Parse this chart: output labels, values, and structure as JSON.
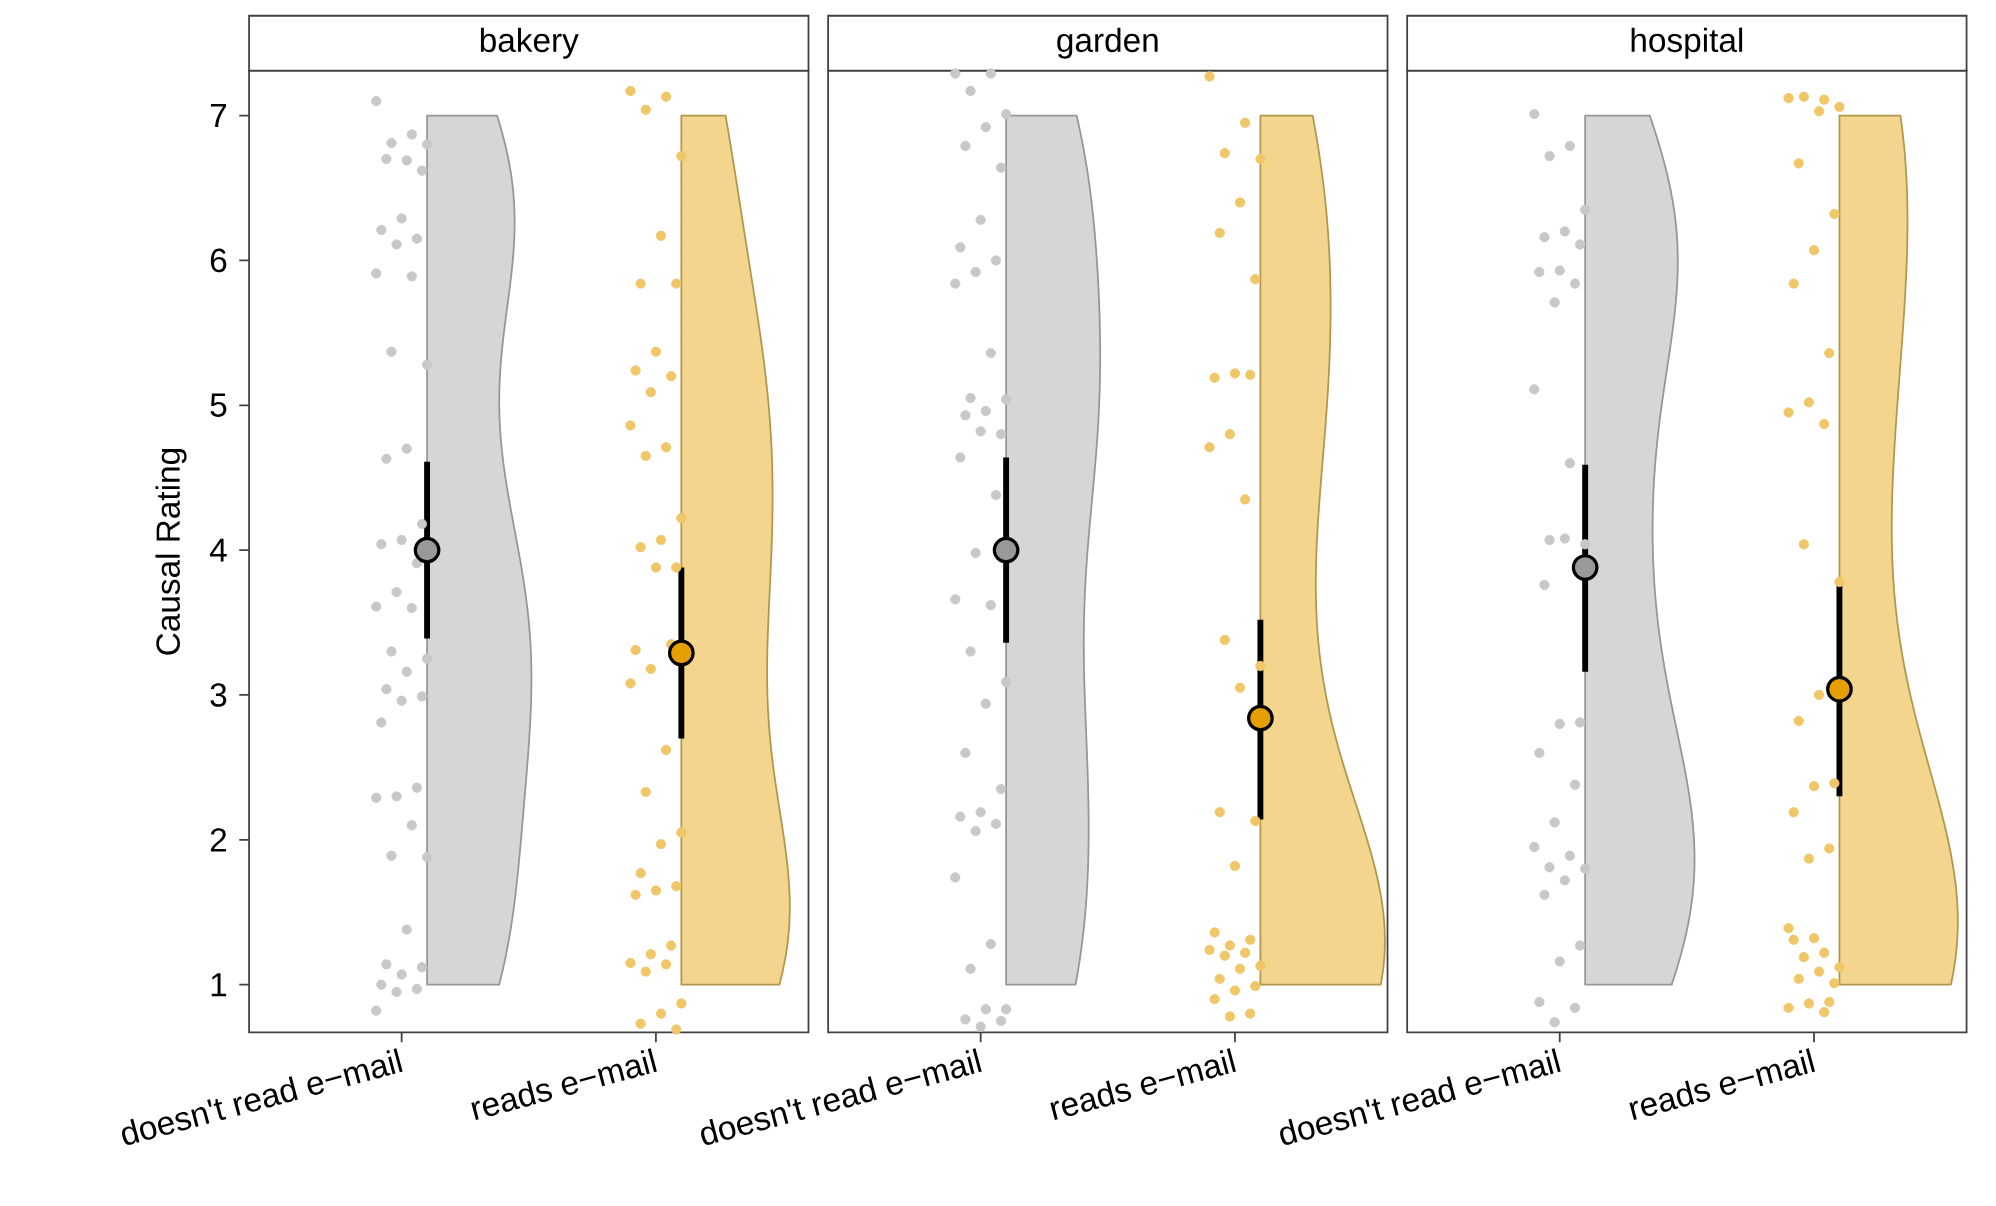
{
  "chart_data": [
    {
      "type": "scatter",
      "title": "bakery",
      "ylabel": "Causal Rating",
      "categories": [
        "doesn't read e−mail",
        "reads e−mail"
      ],
      "ylim": [
        0.67,
        7.31
      ],
      "yticks": [
        1,
        2,
        3,
        4,
        5,
        6,
        7
      ],
      "marker": "circle",
      "series": [
        {
          "color": "#c8c8c8",
          "x": [
            "doesn't read e−mail",
            "doesn't read e−mail",
            "doesn't read e−mail",
            "doesn't read e−mail",
            "doesn't read e−mail",
            "doesn't read e−mail",
            "doesn't read e−mail",
            "doesn't read e−mail",
            "doesn't read e−mail",
            "doesn't read e−mail",
            "doesn't read e−mail",
            "doesn't read e−mail",
            "doesn't read e−mail",
            "doesn't read e−mail",
            "doesn't read e−mail",
            "doesn't read e−mail",
            "doesn't read e−mail",
            "doesn't read e−mail",
            "doesn't read e−mail",
            "doesn't read e−mail",
            "doesn't read e−mail",
            "doesn't read e−mail",
            "doesn't read e−mail",
            "doesn't read e−mail",
            "doesn't read e−mail",
            "doesn't read e−mail",
            "doesn't read e−mail",
            "doesn't read e−mail",
            "doesn't read e−mail",
            "doesn't read e−mail",
            "doesn't read e−mail",
            "doesn't read e−mail",
            "doesn't read e−mail",
            "doesn't read e−mail",
            "doesn't read e−mail",
            "doesn't read e−mail",
            "doesn't read e−mail",
            "doesn't read e−mail",
            "doesn't read e−mail",
            "doesn't read e−mail",
            "doesn't read e−mail",
            "doesn't read e−mail",
            "doesn't read e−mail",
            "doesn't read e−mail",
            "doesn't read e−mail"
          ],
          "values": [
            7.1,
            6.87,
            6.81,
            6.8,
            6.69,
            6.7,
            6.62,
            6.29,
            6.21,
            6.15,
            6.11,
            5.91,
            5.89,
            5.37,
            5.28,
            4.7,
            4.63,
            4.18,
            4.07,
            4.04,
            3.91,
            3.71,
            3.61,
            3.6,
            3.3,
            3.25,
            3.16,
            3.04,
            2.99,
            2.96,
            2.81,
            2.36,
            2.3,
            2.29,
            2.1,
            1.89,
            1.88,
            1.38,
            1.14,
            1.12,
            1.07,
            1.0,
            0.97,
            0.95,
            0.82
          ]
        },
        {
          "color": "#f0c768",
          "x": [
            "reads e−mail",
            "reads e−mail",
            "reads e−mail",
            "reads e−mail",
            "reads e−mail",
            "reads e−mail",
            "reads e−mail",
            "reads e−mail",
            "reads e−mail",
            "reads e−mail",
            "reads e−mail",
            "reads e−mail",
            "reads e−mail",
            "reads e−mail",
            "reads e−mail",
            "reads e−mail",
            "reads e−mail",
            "reads e−mail",
            "reads e−mail",
            "reads e−mail",
            "reads e−mail",
            "reads e−mail",
            "reads e−mail",
            "reads e−mail",
            "reads e−mail",
            "reads e−mail",
            "reads e−mail",
            "reads e−mail",
            "reads e−mail",
            "reads e−mail",
            "reads e−mail",
            "reads e−mail",
            "reads e−mail",
            "reads e−mail",
            "reads e−mail",
            "reads e−mail",
            "reads e−mail",
            "reads e−mail",
            "reads e−mail",
            "reads e−mail"
          ],
          "values": [
            7.17,
            7.13,
            7.04,
            6.72,
            6.17,
            5.84,
            5.84,
            5.37,
            5.24,
            5.2,
            5.09,
            4.86,
            4.71,
            4.65,
            4.22,
            4.07,
            4.02,
            3.88,
            3.88,
            3.31,
            3.35,
            3.18,
            3.08,
            2.62,
            2.33,
            2.05,
            1.97,
            1.77,
            1.68,
            1.65,
            1.62,
            1.27,
            1.21,
            1.15,
            1.14,
            1.09,
            0.87,
            0.8,
            0.73,
            0.69
          ]
        },
        {
          "color": "#999999",
          "x": [
            "doesn't read e−mail"
          ],
          "values": [
            4.0
          ],
          "errors": [
            [
              3.39,
              4.61
            ]
          ]
        },
        {
          "color": "#e69f00",
          "x": [
            "reads e−mail"
          ],
          "values": [
            3.29
          ],
          "errors": [
            [
              2.7,
              3.88
            ]
          ]
        }
      ]
    },
    {
      "type": "scatter",
      "title": "garden",
      "categories": [
        "doesn't read e−mail",
        "reads e−mail"
      ],
      "ylim": [
        0.67,
        7.31
      ],
      "tick_labels": "x",
      "marker": "circle",
      "series": [
        {
          "color": "#c8c8c8",
          "x": [
            "doesn't read e−mail",
            "doesn't read e−mail",
            "doesn't read e−mail",
            "doesn't read e−mail",
            "doesn't read e−mail",
            "doesn't read e−mail",
            "doesn't read e−mail",
            "doesn't read e−mail",
            "doesn't read e−mail",
            "doesn't read e−mail",
            "doesn't read e−mail",
            "doesn't read e−mail",
            "doesn't read e−mail",
            "doesn't read e−mail",
            "doesn't read e−mail",
            "doesn't read e−mail",
            "doesn't read e−mail",
            "doesn't read e−mail",
            "doesn't read e−mail",
            "doesn't read e−mail",
            "doesn't read e−mail",
            "doesn't read e−mail",
            "doesn't read e−mail",
            "doesn't read e−mail",
            "doesn't read e−mail",
            "doesn't read e−mail",
            "doesn't read e−mail",
            "doesn't read e−mail",
            "doesn't read e−mail",
            "doesn't read e−mail",
            "doesn't read e−mail",
            "doesn't read e−mail",
            "doesn't read e−mail",
            "doesn't read e−mail",
            "doesn't read e−mail",
            "doesn't read e−mail",
            "doesn't read e−mail",
            "doesn't read e−mail",
            "doesn't read e−mail",
            "doesn't read e−mail",
            "doesn't read e−mail"
          ],
          "values": [
            7.29,
            7.29,
            7.17,
            7.01,
            6.92,
            6.79,
            6.64,
            6.28,
            6.09,
            6.0,
            5.92,
            5.84,
            5.36,
            5.05,
            5.04,
            4.96,
            4.93,
            4.8,
            4.82,
            4.64,
            4.38,
            3.98,
            3.66,
            3.62,
            3.3,
            3.09,
            2.94,
            2.6,
            2.35,
            2.19,
            2.16,
            2.11,
            2.06,
            1.74,
            1.28,
            1.11,
            0.83,
            0.83,
            0.76,
            0.75,
            0.71
          ]
        },
        {
          "color": "#f0c768",
          "x": [
            "reads e−mail",
            "reads e−mail",
            "reads e−mail",
            "reads e−mail",
            "reads e−mail",
            "reads e−mail",
            "reads e−mail",
            "reads e−mail",
            "reads e−mail",
            "reads e−mail",
            "reads e−mail",
            "reads e−mail",
            "reads e−mail",
            "reads e−mail",
            "reads e−mail",
            "reads e−mail",
            "reads e−mail",
            "reads e−mail",
            "reads e−mail",
            "reads e−mail",
            "reads e−mail",
            "reads e−mail",
            "reads e−mail",
            "reads e−mail",
            "reads e−mail",
            "reads e−mail",
            "reads e−mail",
            "reads e−mail",
            "reads e−mail",
            "reads e−mail",
            "reads e−mail",
            "reads e−mail",
            "reads e−mail"
          ],
          "values": [
            7.27,
            6.95,
            6.74,
            6.7,
            6.4,
            6.19,
            5.87,
            5.22,
            5.19,
            5.21,
            4.8,
            4.71,
            4.35,
            3.38,
            3.2,
            3.05,
            2.19,
            2.13,
            1.82,
            1.36,
            1.31,
            1.27,
            1.24,
            1.22,
            1.2,
            1.13,
            1.11,
            1.04,
            0.99,
            0.96,
            0.9,
            0.8,
            0.78
          ]
        },
        {
          "color": "#999999",
          "x": [
            "doesn't read e−mail"
          ],
          "values": [
            4.0
          ],
          "errors": [
            [
              3.36,
              4.64
            ]
          ]
        },
        {
          "color": "#e69f00",
          "x": [
            "reads e−mail"
          ],
          "values": [
            2.84
          ],
          "errors": [
            [
              2.14,
              3.52
            ]
          ]
        }
      ]
    },
    {
      "type": "scatter",
      "title": "hospital",
      "categories": [
        "doesn't read e−mail",
        "reads e−mail"
      ],
      "ylim": [
        0.67,
        7.31
      ],
      "tick_labels": "x",
      "marker": "circle",
      "series": [
        {
          "color": "#c8c8c8",
          "x": [
            "doesn't read e−mail",
            "doesn't read e−mail",
            "doesn't read e−mail",
            "doesn't read e−mail",
            "doesn't read e−mail",
            "doesn't read e−mail",
            "doesn't read e−mail",
            "doesn't read e−mail",
            "doesn't read e−mail",
            "doesn't read e−mail",
            "doesn't read e−mail",
            "doesn't read e−mail",
            "doesn't read e−mail",
            "doesn't read e−mail",
            "doesn't read e−mail",
            "doesn't read e−mail",
            "doesn't read e−mail",
            "doesn't read e−mail",
            "doesn't read e−mail",
            "doesn't read e−mail",
            "doesn't read e−mail",
            "doesn't read e−mail",
            "doesn't read e−mail",
            "doesn't read e−mail",
            "doesn't read e−mail",
            "doesn't read e−mail",
            "doesn't read e−mail",
            "doesn't read e−mail",
            "doesn't read e−mail",
            "doesn't read e−mail",
            "doesn't read e−mail",
            "doesn't read e−mail",
            "doesn't read e−mail"
          ],
          "values": [
            7.01,
            6.79,
            6.72,
            6.35,
            6.2,
            6.16,
            6.11,
            5.93,
            5.92,
            5.84,
            5.71,
            5.11,
            4.6,
            4.07,
            4.04,
            4.08,
            3.76,
            2.81,
            2.8,
            2.6,
            2.38,
            2.12,
            1.95,
            1.89,
            1.81,
            1.8,
            1.72,
            1.62,
            1.27,
            1.16,
            0.88,
            0.84,
            0.74
          ]
        },
        {
          "color": "#f0c768",
          "x": [
            "reads e−mail",
            "reads e−mail",
            "reads e−mail",
            "reads e−mail",
            "reads e−mail",
            "reads e−mail",
            "reads e−mail",
            "reads e−mail",
            "reads e−mail",
            "reads e−mail",
            "reads e−mail",
            "reads e−mail",
            "reads e−mail",
            "reads e−mail",
            "reads e−mail",
            "reads e−mail",
            "reads e−mail",
            "reads e−mail",
            "reads e−mail",
            "reads e−mail",
            "reads e−mail",
            "reads e−mail",
            "reads e−mail",
            "reads e−mail",
            "reads e−mail",
            "reads e−mail",
            "reads e−mail",
            "reads e−mail",
            "reads e−mail",
            "reads e−mail",
            "reads e−mail",
            "reads e−mail",
            "reads e−mail",
            "reads e−mail",
            "reads e−mail"
          ],
          "values": [
            7.12,
            7.11,
            7.13,
            7.06,
            7.03,
            6.67,
            6.32,
            6.07,
            5.84,
            5.36,
            5.02,
            4.95,
            4.87,
            4.04,
            3.78,
            3.0,
            2.82,
            2.39,
            2.37,
            2.19,
            1.94,
            1.87,
            1.39,
            1.22,
            1.19,
            1.12,
            1.09,
            1.04,
            1.01,
            1.32,
            1.31,
            0.88,
            0.87,
            0.84,
            0.81
          ]
        },
        {
          "color": "#999999",
          "x": [
            "doesn't read e−mail"
          ],
          "values": [
            3.88
          ],
          "errors": [
            [
              3.16,
              4.59
            ]
          ]
        },
        {
          "color": "#e69f00",
          "x": [
            "reads e−mail"
          ],
          "values": [
            3.04
          ],
          "errors": [
            [
              2.3,
              3.79
            ]
          ]
        }
      ]
    }
  ]
}
